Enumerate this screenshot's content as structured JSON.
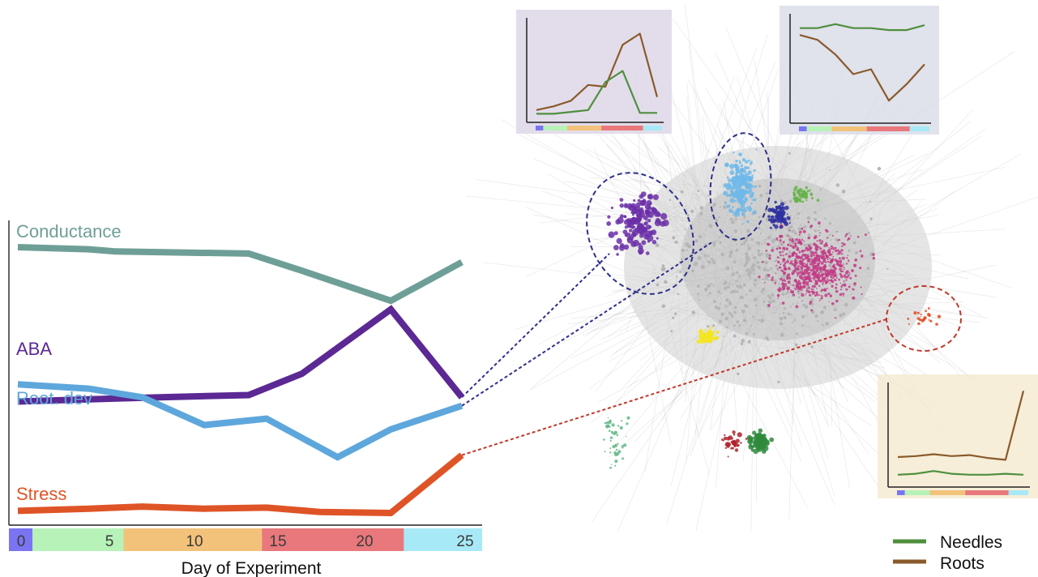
{
  "chart_data": {
    "type": "line",
    "xlabel": "Day of Experiment",
    "ylabel": "",
    "xlim": [
      -0.5,
      25.5
    ],
    "x_ticks": [
      0,
      5,
      10,
      15,
      20,
      25
    ],
    "phase_bar": [
      {
        "start": -0.5,
        "end": 0.8,
        "color": "#7b74f2"
      },
      {
        "start": 0.8,
        "end": 5.8,
        "color": "#b7f2b8"
      },
      {
        "start": 5.8,
        "end": 13.4,
        "color": "#f3c27a"
      },
      {
        "start": 13.4,
        "end": 21.2,
        "color": "#e8787c"
      },
      {
        "start": 21.2,
        "end": 25.5,
        "color": "#a8e9f7"
      }
    ],
    "series": [
      {
        "name": "Conductance",
        "color": "#6e9f97",
        "x": [
          0,
          4,
          5.5,
          13,
          16,
          21,
          25
        ],
        "y": [
          0.95,
          0.94,
          0.93,
          0.92,
          0.84,
          0.7,
          0.88
        ]
      },
      {
        "name": "ABA",
        "color": "#5b2894",
        "x": [
          0,
          4,
          8,
          13,
          16,
          21,
          25
        ],
        "y": [
          0.23,
          0.24,
          0.25,
          0.26,
          0.36,
          0.66,
          0.25
        ]
      },
      {
        "name": "Root. dev",
        "color": "#5ea7dc",
        "x": [
          0,
          4,
          7,
          10.5,
          14,
          18,
          21,
          25
        ],
        "y": [
          0.31,
          0.29,
          0.25,
          0.12,
          0.15,
          -0.03,
          0.1,
          0.21
        ]
      },
      {
        "name": "Stress",
        "color": "#df5427",
        "x": [
          0,
          4,
          7,
          10.5,
          14,
          17,
          21,
          25
        ],
        "y": [
          -0.28,
          -0.27,
          -0.26,
          -0.27,
          -0.265,
          -0.285,
          -0.29,
          -0.02
        ]
      }
    ],
    "insets": [
      {
        "region": "top-center",
        "type": "line",
        "series": [
          {
            "name": "Roots",
            "color": "#8a5a2b",
            "y": [
              0.08,
              0.12,
              0.18,
              0.35,
              0.33,
              0.78,
              0.9,
              0.22
            ]
          },
          {
            "name": "Needles",
            "color": "#4f8f3e",
            "y": [
              0.04,
              0.04,
              0.06,
              0.08,
              0.38,
              0.5,
              0.05,
              0.05
            ]
          }
        ]
      },
      {
        "region": "top-right",
        "type": "line",
        "series": [
          {
            "name": "Needles",
            "color": "#4f8f3e",
            "y": [
              0.92,
              0.92,
              0.96,
              0.92,
              0.92,
              0.9,
              0.9,
              0.95
            ]
          },
          {
            "name": "Roots",
            "color": "#8a5a2b",
            "y": [
              0.85,
              0.8,
              0.65,
              0.45,
              0.5,
              0.18,
              0.35,
              0.55
            ]
          }
        ]
      },
      {
        "region": "bottom-right",
        "type": "line",
        "series": [
          {
            "name": "Roots",
            "color": "#8a5a2b",
            "y": [
              0.27,
              0.28,
              0.3,
              0.28,
              0.29,
              0.26,
              0.24,
              0.98
            ]
          },
          {
            "name": "Needles",
            "color": "#4f8f3e",
            "y": [
              0.08,
              0.09,
              0.12,
              0.09,
              0.08,
              0.08,
              0.09,
              0.08
            ]
          }
        ]
      }
    ],
    "legend": {
      "position": "bottom-right",
      "entries": [
        {
          "label": "Needles",
          "color": "#4f8f3e"
        },
        {
          "label": "Roots",
          "color": "#8a5a2b"
        }
      ]
    },
    "network_clusters": [
      {
        "color": "#6b2fa8",
        "highlighted": true,
        "outline": "#2d2f8a"
      },
      {
        "color": "#6fb9ea",
        "highlighted": true,
        "outline": "#2d2f8a"
      },
      {
        "color": "#e0481f",
        "highlighted": true,
        "outline": "#c0392b"
      },
      {
        "color": "#c23b86",
        "highlighted": false
      },
      {
        "color": "#f4e521",
        "highlighted": false
      },
      {
        "color": "#2f8a3c",
        "highlighted": false
      },
      {
        "color": "#2d2fa0",
        "highlighted": false
      },
      {
        "color": "#64b346",
        "highlighted": false
      }
    ]
  }
}
